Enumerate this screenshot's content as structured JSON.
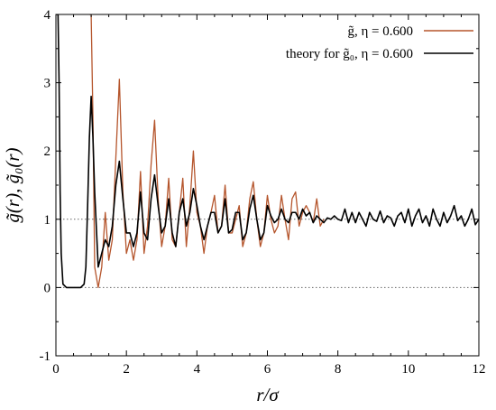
{
  "chart_data": {
    "type": "line",
    "xlabel": "r/σ",
    "ylabel": "g̃(r),  g̃₀(r)",
    "xlim": [
      0,
      12
    ],
    "ylim": [
      -1,
      4
    ],
    "xticks": [
      0,
      2,
      4,
      6,
      8,
      10,
      12
    ],
    "yticks": [
      -1,
      0,
      1,
      2,
      3,
      4
    ],
    "grid": false,
    "reference_lines": [
      {
        "y": 1,
        "style": "dotted"
      },
      {
        "y": 0,
        "style": "dotted"
      }
    ],
    "legend_position": "top-right",
    "series": [
      {
        "name": "g̃, η = 0.600",
        "color": "#b5552c",
        "x": [
          0.95,
          1.0,
          1.05,
          1.1,
          1.2,
          1.3,
          1.4,
          1.5,
          1.6,
          1.7,
          1.8,
          1.9,
          2.0,
          2.1,
          2.2,
          2.3,
          2.4,
          2.5,
          2.6,
          2.7,
          2.8,
          2.9,
          3.0,
          3.1,
          3.2,
          3.3,
          3.4,
          3.5,
          3.6,
          3.7,
          3.8,
          3.9,
          4.0,
          4.1,
          4.2,
          4.3,
          4.4,
          4.5,
          4.6,
          4.7,
          4.8,
          4.9,
          5.0,
          5.1,
          5.2,
          5.3,
          5.4,
          5.5,
          5.6,
          5.7,
          5.8,
          5.9,
          6.0,
          6.1,
          6.2,
          6.3,
          6.4,
          6.5,
          6.6,
          6.7,
          6.8,
          6.9,
          7.0,
          7.1,
          7.2,
          7.3,
          7.4,
          7.5,
          7.6
        ],
        "y": [
          4.0,
          4.0,
          2.5,
          0.3,
          0.0,
          0.3,
          1.1,
          0.4,
          0.7,
          1.9,
          3.05,
          1.4,
          0.5,
          0.7,
          0.4,
          0.7,
          1.7,
          0.5,
          0.9,
          1.8,
          2.45,
          1.3,
          0.6,
          0.9,
          1.6,
          0.7,
          0.6,
          1.1,
          1.6,
          0.6,
          1.2,
          2.0,
          1.1,
          0.9,
          0.5,
          0.9,
          1.1,
          1.35,
          0.8,
          0.9,
          1.5,
          0.8,
          0.8,
          1.0,
          1.2,
          0.6,
          0.8,
          1.3,
          1.55,
          1.0,
          0.6,
          0.8,
          1.35,
          1.0,
          0.8,
          0.9,
          1.35,
          1.0,
          0.7,
          1.3,
          1.4,
          0.9,
          1.1,
          1.2,
          1.1,
          0.95,
          1.3,
          0.9,
          1.0
        ]
      },
      {
        "name": "theory for g̃₀, η = 0.600",
        "color": "#000000",
        "x": [
          0.0,
          0.03,
          0.06,
          0.09,
          0.12,
          0.15,
          0.2,
          0.3,
          0.4,
          0.5,
          0.6,
          0.7,
          0.8,
          0.85,
          0.9,
          0.95,
          1.0,
          1.05,
          1.1,
          1.2,
          1.3,
          1.4,
          1.5,
          1.6,
          1.7,
          1.8,
          1.9,
          2.0,
          2.1,
          2.2,
          2.3,
          2.4,
          2.5,
          2.6,
          2.7,
          2.8,
          2.9,
          3.0,
          3.1,
          3.2,
          3.3,
          3.4,
          3.5,
          3.6,
          3.7,
          3.8,
          3.9,
          4.0,
          4.1,
          4.2,
          4.3,
          4.4,
          4.5,
          4.6,
          4.7,
          4.8,
          4.9,
          5.0,
          5.1,
          5.2,
          5.3,
          5.4,
          5.5,
          5.6,
          5.7,
          5.8,
          5.9,
          6.0,
          6.1,
          6.2,
          6.3,
          6.4,
          6.5,
          6.6,
          6.7,
          6.8,
          6.9,
          7.0,
          7.1,
          7.2,
          7.3,
          7.4,
          7.5,
          7.6,
          7.7,
          7.8,
          7.9,
          8.0,
          8.1,
          8.2,
          8.3,
          8.4,
          8.5,
          8.6,
          8.7,
          8.8,
          8.9,
          9.0,
          9.1,
          9.2,
          9.3,
          9.4,
          9.5,
          9.6,
          9.7,
          9.8,
          9.9,
          10.0,
          10.1,
          10.2,
          10.3,
          10.4,
          10.5,
          10.6,
          10.7,
          10.8,
          10.9,
          11.0,
          11.1,
          11.2,
          11.3,
          11.4,
          11.5,
          11.6,
          11.7,
          11.8,
          11.9,
          12.0
        ],
        "y": [
          4.0,
          4.0,
          4.0,
          3.0,
          1.4,
          0.5,
          0.05,
          0.0,
          0.0,
          0.0,
          0.0,
          0.0,
          0.05,
          0.3,
          1.2,
          2.2,
          2.8,
          2.2,
          1.4,
          0.3,
          0.5,
          0.7,
          0.6,
          0.9,
          1.5,
          1.85,
          1.3,
          0.8,
          0.8,
          0.6,
          0.8,
          1.4,
          0.8,
          0.7,
          1.3,
          1.65,
          1.2,
          0.8,
          0.9,
          1.3,
          0.8,
          0.6,
          1.1,
          1.3,
          0.9,
          1.1,
          1.45,
          1.2,
          0.9,
          0.7,
          0.9,
          1.1,
          1.1,
          0.8,
          0.9,
          1.3,
          0.8,
          0.85,
          1.1,
          1.1,
          0.7,
          0.8,
          1.15,
          1.35,
          1.0,
          0.7,
          0.8,
          1.2,
          1.05,
          0.95,
          1.0,
          1.15,
          1.0,
          0.95,
          1.1,
          1.1,
          1.0,
          1.15,
          1.05,
          1.1,
          0.95,
          1.05,
          1.0,
          0.95,
          1.02,
          1.0,
          1.05,
          1.0,
          0.98,
          1.15,
          0.95,
          1.1,
          0.95,
          1.1,
          1.0,
          0.9,
          1.1,
          1.0,
          0.97,
          1.12,
          0.95,
          1.05,
          1.02,
          0.9,
          1.05,
          1.1,
          0.95,
          1.15,
          0.9,
          1.05,
          1.15,
          0.95,
          1.05,
          0.9,
          1.15,
          1.0,
          0.9,
          1.1,
          0.95,
          1.05,
          1.2,
          0.98,
          1.05,
          0.9,
          1.0,
          1.15,
          0.92,
          1.0
        ]
      }
    ]
  }
}
